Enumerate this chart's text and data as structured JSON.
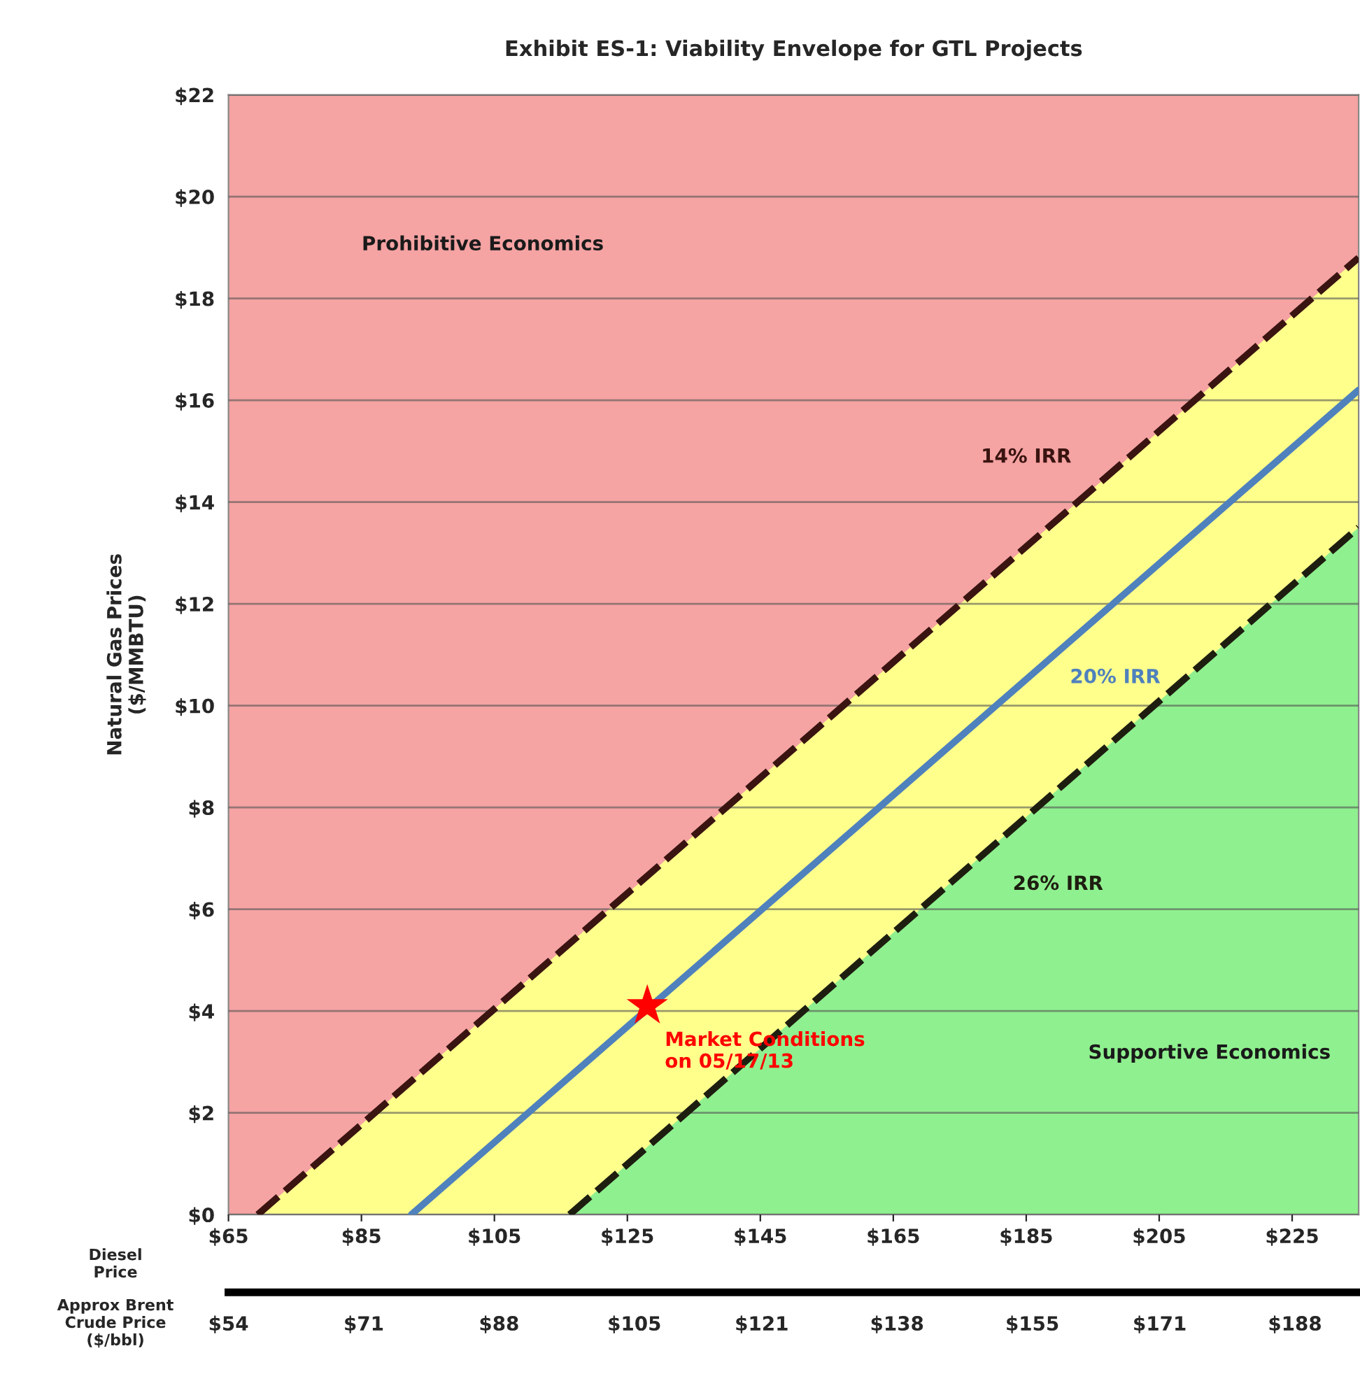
{
  "chart_data": {
    "type": "line",
    "title": "Exhibit ES-1: Viability Envelope for GTL Projects",
    "xlabel": "Diesel\nPrice",
    "x2label": "Approx Brent\nCrude Price\n($/bbl)",
    "ylabel": "Natural Gas Prices\n($/MMBTU)",
    "xlim": [
      65,
      235
    ],
    "xticks": [
      {
        "value": 65,
        "label": "$65"
      },
      {
        "value": 85,
        "label": "$85"
      },
      {
        "value": 105,
        "label": "$105"
      },
      {
        "value": 125,
        "label": "$125"
      },
      {
        "value": 145,
        "label": "$145"
      },
      {
        "value": 165,
        "label": "$165"
      },
      {
        "value": 185,
        "label": "$185"
      },
      {
        "value": 205,
        "label": "$205"
      },
      {
        "value": 225,
        "label": "$225"
      }
    ],
    "x2lim": [
      54,
      196
    ],
    "x2ticks": [
      {
        "value": 54,
        "label": "$54"
      },
      {
        "value": 71,
        "label": "$71"
      },
      {
        "value": 88,
        "label": "$88"
      },
      {
        "value": 105,
        "label": "$105"
      },
      {
        "value": 121,
        "label": "$121"
      },
      {
        "value": 138,
        "label": "$138"
      },
      {
        "value": 155,
        "label": "$155"
      },
      {
        "value": 171,
        "label": "$171"
      },
      {
        "value": 188,
        "label": "$188"
      }
    ],
    "ylim": [
      0,
      22
    ],
    "yticks": [
      {
        "value": 0,
        "label": "$0"
      },
      {
        "value": 2,
        "label": "$2"
      },
      {
        "value": 4,
        "label": "$4"
      },
      {
        "value": 6,
        "label": "$6"
      },
      {
        "value": 8,
        "label": "$8"
      },
      {
        "value": 10,
        "label": "$10"
      },
      {
        "value": 12,
        "label": "$12"
      },
      {
        "value": 14,
        "label": "$14"
      },
      {
        "value": 16,
        "label": "$16"
      },
      {
        "value": 18,
        "label": "$18"
      },
      {
        "value": 20,
        "label": "$20"
      },
      {
        "value": 22,
        "label": "$22"
      }
    ],
    "grid": "y",
    "bands": [
      {
        "axis": "y",
        "from": 0,
        "to": 22,
        "color": "#f5a3a3"
      }
    ],
    "series": [
      {
        "name": "14% IRR",
        "color": "#3a1410",
        "line_style": "dashed",
        "x": [
          69.4,
          235
        ],
        "values": [
          0,
          18.8
        ]
      },
      {
        "name": "20% IRR",
        "color": "#4f81bd",
        "line_style": "solid",
        "x": [
          92.5,
          235
        ],
        "values": [
          0,
          16.2
        ]
      },
      {
        "name": "26% IRR",
        "color": "#1e1e10",
        "line_style": "dashed",
        "x": [
          116.3,
          235
        ],
        "values": [
          0,
          13.5
        ]
      },
      {
        "type": "scatter",
        "name": "Market Conditions\non 05/17/13",
        "color": "#ff0000",
        "marker": "star",
        "x": [
          128
        ],
        "values": [
          4.1
        ]
      }
    ],
    "annotations": [
      "Prohibitive Economics",
      "Supportive Economics"
    ]
  }
}
